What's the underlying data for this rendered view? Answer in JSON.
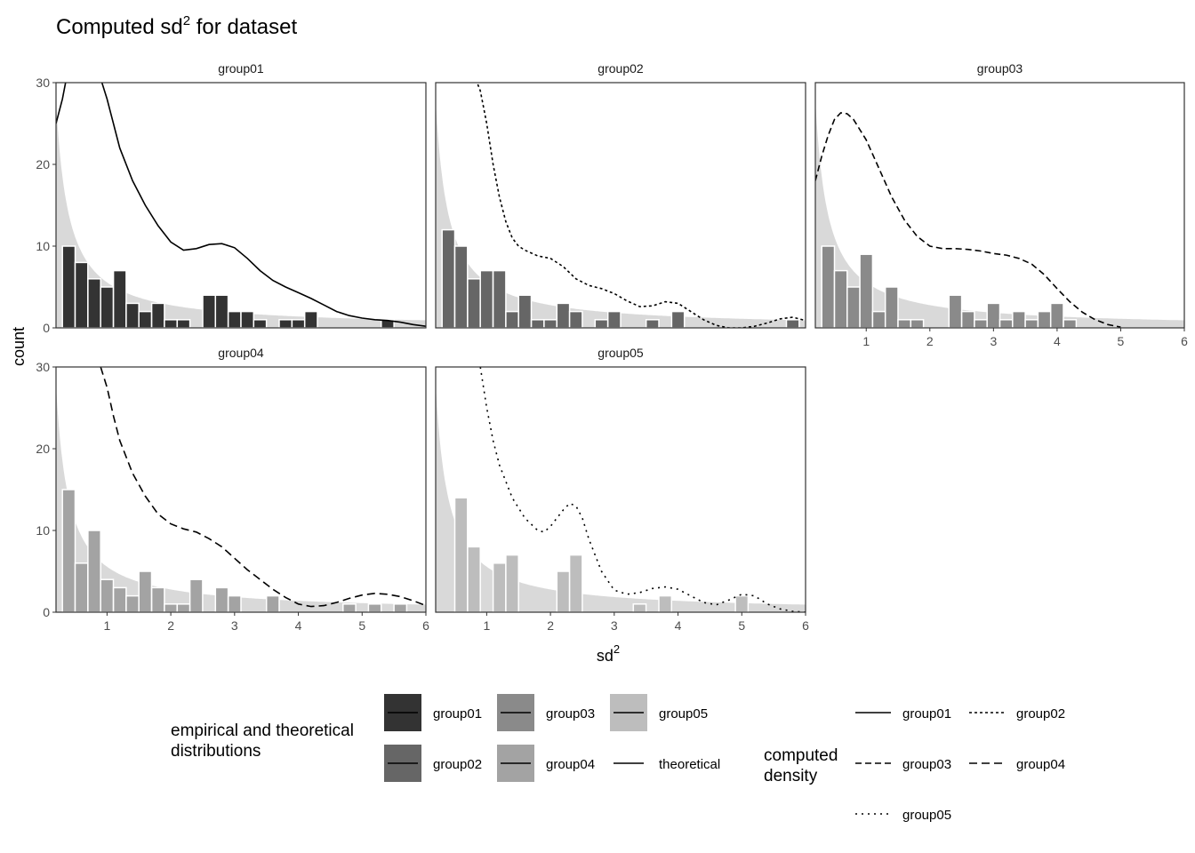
{
  "chart_data": {
    "type": "bar",
    "title": "Computed sd",
    "title_superscript": "2",
    "title_suffix": " for dataset",
    "xlabel": "sd",
    "xlabel_superscript": "2",
    "ylabel": "count",
    "xlim": [
      0.2,
      6
    ],
    "ylim": [
      0,
      30
    ],
    "x_ticks": [
      1,
      2,
      3,
      4,
      5,
      6
    ],
    "y_ticks": [
      0,
      10,
      20,
      30
    ],
    "bin_width": 0.2,
    "grid": false,
    "theoretical_fill": "#d9d9d9",
    "panels": [
      {
        "name": "group01",
        "fill": "#333333",
        "line_style": "solid",
        "bins": [
          [
            0.4,
            10
          ],
          [
            0.6,
            8
          ],
          [
            0.8,
            6
          ],
          [
            1.0,
            5
          ],
          [
            1.2,
            7
          ],
          [
            1.4,
            3
          ],
          [
            1.6,
            2
          ],
          [
            1.8,
            3
          ],
          [
            2.0,
            1
          ],
          [
            2.2,
            1
          ],
          [
            2.6,
            4
          ],
          [
            2.8,
            4
          ],
          [
            3.0,
            2
          ],
          [
            3.2,
            2
          ],
          [
            3.4,
            1
          ],
          [
            3.8,
            1
          ],
          [
            4.0,
            1
          ],
          [
            4.2,
            2
          ],
          [
            5.4,
            1
          ]
        ],
        "density": [
          [
            0.2,
            25
          ],
          [
            0.3,
            28
          ],
          [
            0.4,
            32
          ],
          [
            0.6,
            35
          ],
          [
            0.8,
            33
          ],
          [
            1.0,
            28
          ],
          [
            1.2,
            22
          ],
          [
            1.4,
            18
          ],
          [
            1.6,
            15
          ],
          [
            1.8,
            12.5
          ],
          [
            2.0,
            10.5
          ],
          [
            2.2,
            9.5
          ],
          [
            2.4,
            9.7
          ],
          [
            2.6,
            10.2
          ],
          [
            2.8,
            10.3
          ],
          [
            3.0,
            9.8
          ],
          [
            3.2,
            8.5
          ],
          [
            3.4,
            7
          ],
          [
            3.6,
            5.8
          ],
          [
            3.8,
            5
          ],
          [
            4.0,
            4.3
          ],
          [
            4.2,
            3.6
          ],
          [
            4.4,
            2.8
          ],
          [
            4.6,
            2
          ],
          [
            4.8,
            1.5
          ],
          [
            5.0,
            1.2
          ],
          [
            5.2,
            1
          ],
          [
            5.4,
            0.9
          ],
          [
            5.6,
            0.7
          ],
          [
            5.8,
            0.4
          ],
          [
            6.0,
            0.2
          ]
        ]
      },
      {
        "name": "group02",
        "fill": "#666666",
        "line_style": "dotted-short",
        "bins": [
          [
            0.4,
            12
          ],
          [
            0.6,
            10
          ],
          [
            0.8,
            6
          ],
          [
            1.0,
            7
          ],
          [
            1.2,
            7
          ],
          [
            1.4,
            2
          ],
          [
            1.6,
            4
          ],
          [
            1.8,
            1
          ],
          [
            2.0,
            1
          ],
          [
            2.2,
            3
          ],
          [
            2.4,
            2
          ],
          [
            2.8,
            1
          ],
          [
            3.0,
            2
          ],
          [
            3.6,
            1
          ],
          [
            4.0,
            2
          ],
          [
            5.8,
            1
          ]
        ],
        "density": [
          [
            0.8,
            31
          ],
          [
            0.9,
            29
          ],
          [
            1.0,
            25
          ],
          [
            1.1,
            20
          ],
          [
            1.2,
            16
          ],
          [
            1.3,
            13
          ],
          [
            1.4,
            11
          ],
          [
            1.5,
            10
          ],
          [
            1.6,
            9.5
          ],
          [
            1.8,
            8.8
          ],
          [
            2.0,
            8.5
          ],
          [
            2.2,
            7.5
          ],
          [
            2.4,
            6
          ],
          [
            2.6,
            5.2
          ],
          [
            2.8,
            4.8
          ],
          [
            3.0,
            4.2
          ],
          [
            3.2,
            3.3
          ],
          [
            3.4,
            2.6
          ],
          [
            3.6,
            2.7
          ],
          [
            3.8,
            3.2
          ],
          [
            4.0,
            3
          ],
          [
            4.2,
            2
          ],
          [
            4.4,
            1
          ],
          [
            4.6,
            0.3
          ],
          [
            4.8,
            0
          ],
          [
            5.0,
            0
          ],
          [
            5.2,
            0.2
          ],
          [
            5.4,
            0.6
          ],
          [
            5.6,
            1.1
          ],
          [
            5.8,
            1.3
          ],
          [
            6.0,
            0.9
          ]
        ]
      },
      {
        "name": "group03",
        "fill": "#8a8a8a",
        "line_style": "dashed",
        "bins": [
          [
            0.4,
            10
          ],
          [
            0.6,
            7
          ],
          [
            0.8,
            5
          ],
          [
            1.0,
            9
          ],
          [
            1.2,
            2
          ],
          [
            1.4,
            5
          ],
          [
            1.6,
            1
          ],
          [
            1.8,
            1
          ],
          [
            2.4,
            4
          ],
          [
            2.6,
            2
          ],
          [
            2.8,
            1
          ],
          [
            3.0,
            3
          ],
          [
            3.2,
            1
          ],
          [
            3.4,
            2
          ],
          [
            3.6,
            1
          ],
          [
            3.8,
            2
          ],
          [
            4.0,
            3
          ],
          [
            4.2,
            1
          ]
        ],
        "density": [
          [
            0.2,
            18
          ],
          [
            0.3,
            21
          ],
          [
            0.4,
            23.5
          ],
          [
            0.5,
            25.5
          ],
          [
            0.6,
            26.3
          ],
          [
            0.7,
            26.2
          ],
          [
            0.8,
            25.5
          ],
          [
            1.0,
            23
          ],
          [
            1.2,
            19.5
          ],
          [
            1.4,
            16
          ],
          [
            1.6,
            13.2
          ],
          [
            1.8,
            11.2
          ],
          [
            2.0,
            10
          ],
          [
            2.2,
            9.7
          ],
          [
            2.4,
            9.7
          ],
          [
            2.6,
            9.6
          ],
          [
            2.8,
            9.4
          ],
          [
            3.0,
            9.1
          ],
          [
            3.2,
            8.9
          ],
          [
            3.4,
            8.5
          ],
          [
            3.6,
            7.8
          ],
          [
            3.8,
            6.5
          ],
          [
            4.0,
            4.8
          ],
          [
            4.2,
            3.2
          ],
          [
            4.4,
            1.9
          ],
          [
            4.6,
            1
          ],
          [
            4.8,
            0.4
          ],
          [
            5.0,
            0.1
          ]
        ]
      },
      {
        "name": "group04",
        "fill": "#a3a3a3",
        "line_style": "dashed-long",
        "bins": [
          [
            0.4,
            15
          ],
          [
            0.6,
            6
          ],
          [
            0.8,
            10
          ],
          [
            1.0,
            4
          ],
          [
            1.2,
            3
          ],
          [
            1.4,
            2
          ],
          [
            1.6,
            5
          ],
          [
            1.8,
            3
          ],
          [
            2.0,
            1
          ],
          [
            2.2,
            1
          ],
          [
            2.4,
            4
          ],
          [
            2.8,
            3
          ],
          [
            3.0,
            2
          ],
          [
            3.6,
            2
          ],
          [
            4.8,
            1
          ],
          [
            5.2,
            1
          ],
          [
            5.6,
            1
          ]
        ],
        "density": [
          [
            0.9,
            30
          ],
          [
            1.0,
            27.5
          ],
          [
            1.1,
            24
          ],
          [
            1.2,
            21
          ],
          [
            1.4,
            17
          ],
          [
            1.6,
            14.2
          ],
          [
            1.8,
            12
          ],
          [
            2.0,
            10.8
          ],
          [
            2.2,
            10.2
          ],
          [
            2.4,
            9.8
          ],
          [
            2.6,
            9
          ],
          [
            2.8,
            8
          ],
          [
            3.0,
            6.6
          ],
          [
            3.2,
            5.2
          ],
          [
            3.4,
            4
          ],
          [
            3.6,
            2.8
          ],
          [
            3.8,
            1.8
          ],
          [
            4.0,
            1
          ],
          [
            4.2,
            0.7
          ],
          [
            4.4,
            0.8
          ],
          [
            4.6,
            1.2
          ],
          [
            4.8,
            1.7
          ],
          [
            5.0,
            2.1
          ],
          [
            5.2,
            2.3
          ],
          [
            5.4,
            2.2
          ],
          [
            5.6,
            1.9
          ],
          [
            5.8,
            1.4
          ],
          [
            6.0,
            0.8
          ]
        ]
      },
      {
        "name": "group05",
        "fill": "#bdbdbd",
        "line_style": "dotted",
        "bins": [
          [
            0.6,
            14
          ],
          [
            0.8,
            8
          ],
          [
            1.2,
            6
          ],
          [
            1.4,
            7
          ],
          [
            2.2,
            5
          ],
          [
            2.4,
            7
          ],
          [
            3.4,
            1
          ],
          [
            3.8,
            2
          ],
          [
            5.0,
            2
          ]
        ],
        "density": [
          [
            0.9,
            30
          ],
          [
            1.0,
            25
          ],
          [
            1.1,
            21
          ],
          [
            1.2,
            18
          ],
          [
            1.4,
            14
          ],
          [
            1.6,
            11.5
          ],
          [
            1.8,
            10
          ],
          [
            1.9,
            9.8
          ],
          [
            2.0,
            10.5
          ],
          [
            2.2,
            12.5
          ],
          [
            2.3,
            13.3
          ],
          [
            2.4,
            13
          ],
          [
            2.5,
            11.5
          ],
          [
            2.6,
            9
          ],
          [
            2.8,
            5
          ],
          [
            3.0,
            2.7
          ],
          [
            3.2,
            2.2
          ],
          [
            3.4,
            2.4
          ],
          [
            3.6,
            2.9
          ],
          [
            3.8,
            3.1
          ],
          [
            4.0,
            2.8
          ],
          [
            4.2,
            2
          ],
          [
            4.4,
            1.2
          ],
          [
            4.6,
            0.9
          ],
          [
            4.8,
            1.5
          ],
          [
            5.0,
            2.2
          ],
          [
            5.2,
            2
          ],
          [
            5.4,
            1
          ],
          [
            5.6,
            0.4
          ],
          [
            5.8,
            0.1
          ],
          [
            6.0,
            0
          ]
        ]
      }
    ],
    "theoretical_curve": "5.56 / x",
    "legend_fill": {
      "title_line1": "empirical and theoretical",
      "title_line2": "distributions",
      "entries": [
        "group01",
        "group03",
        "group05",
        "group02",
        "group04",
        "theoretical"
      ],
      "colors": [
        "#333333",
        "#8a8a8a",
        "#bdbdbd",
        "#666666",
        "#a3a3a3",
        "#ffffff"
      ]
    },
    "legend_line": {
      "title_line1": "computed",
      "title_line2": "density",
      "entries": [
        "group01",
        "group02",
        "group03",
        "group04",
        "group05"
      ],
      "styles": [
        "solid",
        "dotted-short",
        "dashed",
        "dashed-long",
        "dotted"
      ]
    },
    "legend_position": "bottom"
  }
}
